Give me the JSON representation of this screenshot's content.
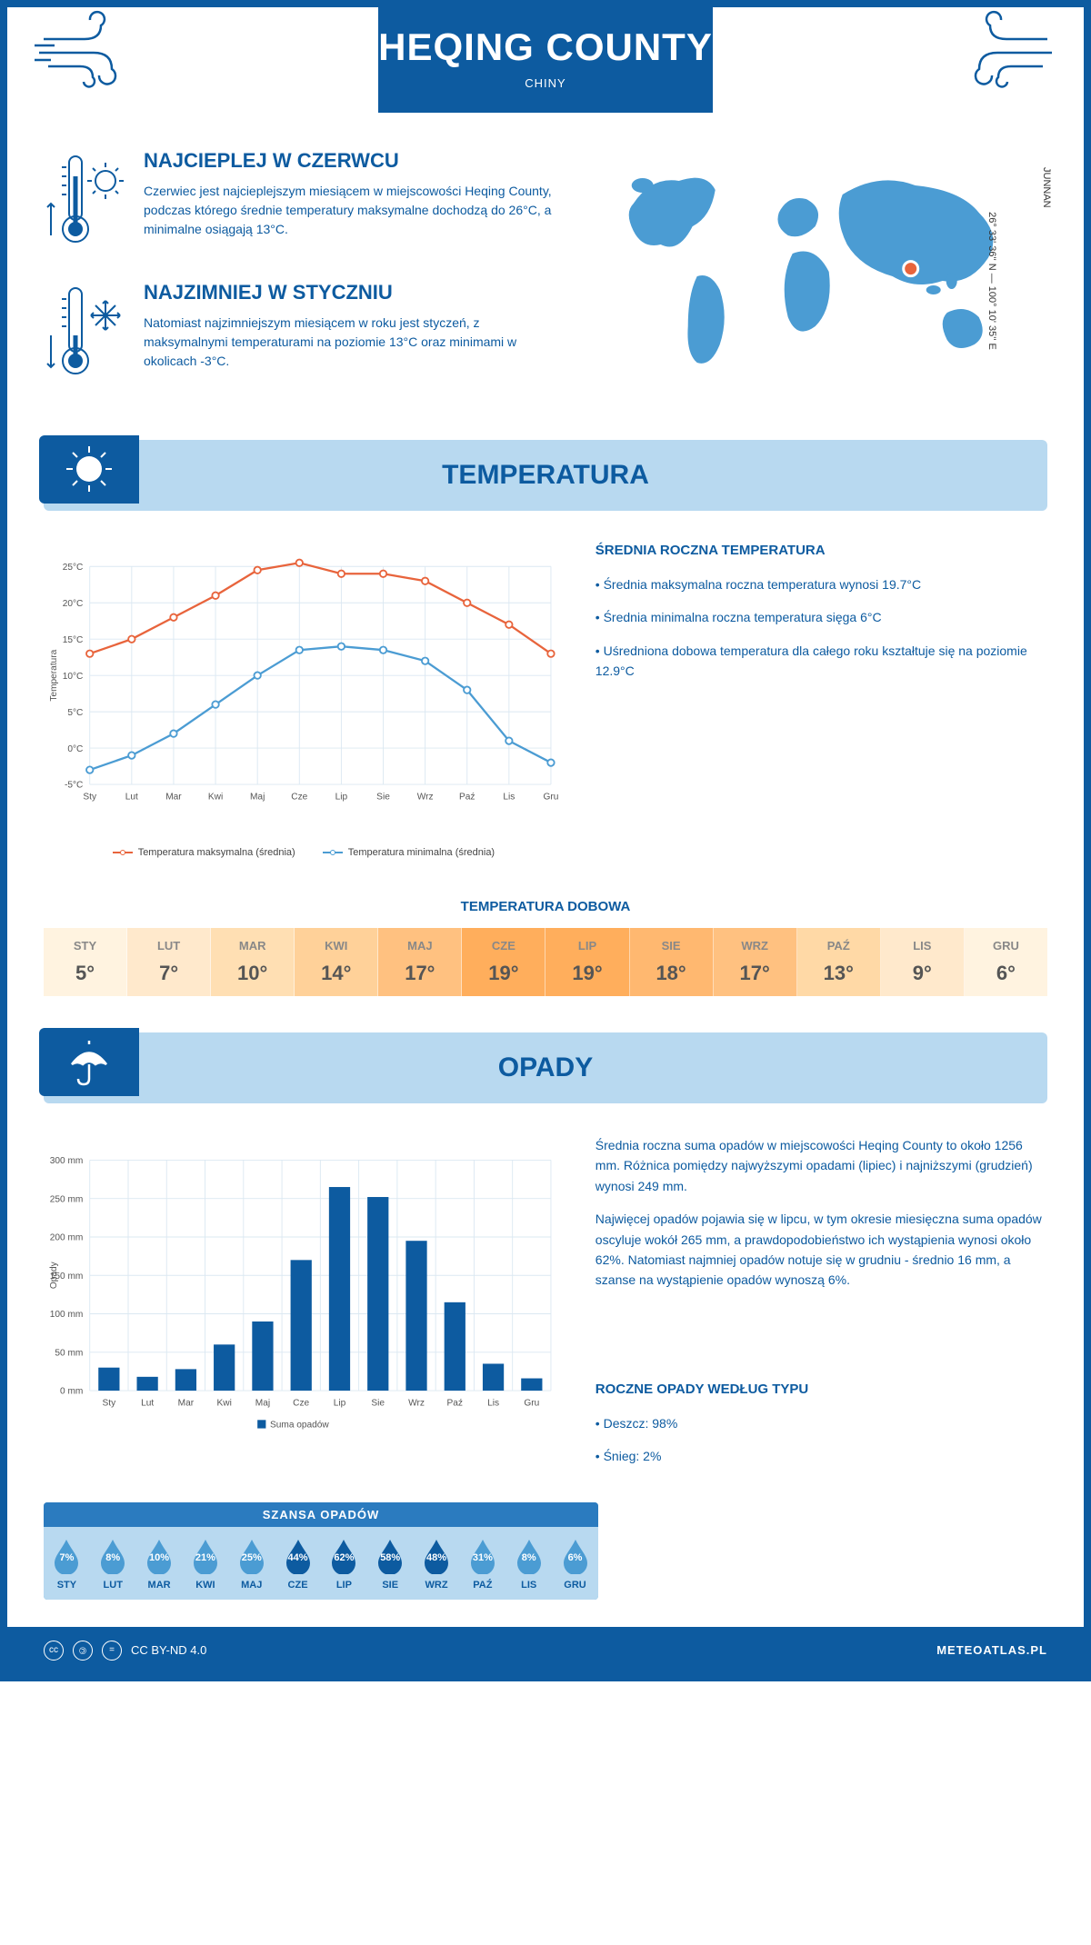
{
  "header": {
    "title": "HEQING COUNTY",
    "subtitle": "CHINY"
  },
  "coords": "26° 33' 36'' N — 100° 10' 35'' E",
  "region": "JUNNAN",
  "location_marker": {
    "cx_pct": 71,
    "cy_pct": 47
  },
  "warmest": {
    "title": "NAJCIEPLEJ W CZERWCU",
    "text": "Czerwiec jest najcieplejszym miesiącem w miejscowości Heqing County, podczas którego średnie temperatury maksymalne dochodzą do 26°C, a minimalne osiągają 13°C."
  },
  "coldest": {
    "title": "NAJZIMNIEJ W STYCZNIU",
    "text": "Natomiast najzimniejszym miesiącem w roku jest styczeń, z maksymalnymi temperaturami na poziomie 13°C oraz minimami w okolicach -3°C."
  },
  "temp_section": {
    "header": "TEMPERATURA",
    "side_title": "ŚREDNIA ROCZNA TEMPERATURA",
    "bullets": [
      "• Średnia maksymalna roczna temperatura wynosi 19.7°C",
      "• Średnia minimalna roczna temperatura sięga 6°C",
      "• Uśredniona dobowa temperatura dla całego roku kształtuje się na poziomie 12.9°C"
    ],
    "chart": {
      "type": "line",
      "months": [
        "Sty",
        "Lut",
        "Mar",
        "Kwi",
        "Maj",
        "Cze",
        "Lip",
        "Sie",
        "Wrz",
        "Paź",
        "Lis",
        "Gru"
      ],
      "ylim": [
        -5,
        25
      ],
      "ytick_step": 5,
      "ylabel": "Temperatura",
      "series": [
        {
          "name": "Temperatura maksymalna (średnia)",
          "color": "#e8643c",
          "values": [
            13,
            15,
            18,
            21,
            24.5,
            25.5,
            24,
            24,
            23,
            20,
            17,
            13
          ]
        },
        {
          "name": "Temperatura minimalna (średnia)",
          "color": "#4b9cd3",
          "values": [
            -3,
            -1,
            2,
            6,
            10,
            13.5,
            14,
            13.5,
            12,
            8,
            1,
            -2
          ]
        }
      ],
      "background_color": "#ffffff",
      "grid_color": "#dbe8f2"
    },
    "dobowa_title": "TEMPERATURA DOBOWA",
    "dobowa": {
      "months": [
        "STY",
        "LUT",
        "MAR",
        "KWI",
        "MAJ",
        "CZE",
        "LIP",
        "SIE",
        "WRZ",
        "PAŹ",
        "LIS",
        "GRU"
      ],
      "values": [
        "5°",
        "7°",
        "10°",
        "14°",
        "17°",
        "19°",
        "19°",
        "18°",
        "17°",
        "13°",
        "9°",
        "6°"
      ],
      "colors": [
        "#fff3e0",
        "#ffe9cc",
        "#ffdfb3",
        "#ffd199",
        "#ffc180",
        "#ffae5c",
        "#ffae5c",
        "#ffb870",
        "#ffc180",
        "#ffd9a6",
        "#ffe9cc",
        "#fff3e0"
      ]
    }
  },
  "precip_section": {
    "header": "OPADY",
    "side_para1": "Średnia roczna suma opadów w miejscowości Heqing County to około 1256 mm. Różnica pomiędzy najwyższymi opadami (lipiec) i najniższymi (grudzień) wynosi 249 mm.",
    "side_para2": "Najwięcej opadów pojawia się w lipcu, w tym okresie miesięczna suma opadów oscyluje wokół 265 mm, a prawdopodobieństwo ich wystąpienia wynosi około 62%. Natomiast najmniej opadów notuje się w grudniu - średnio 16 mm, a szanse na wystąpienie opadów wynoszą 6%.",
    "chart": {
      "type": "bar",
      "months": [
        "Sty",
        "Lut",
        "Mar",
        "Kwi",
        "Maj",
        "Cze",
        "Lip",
        "Sie",
        "Wrz",
        "Paź",
        "Lis",
        "Gru"
      ],
      "values": [
        30,
        18,
        28,
        60,
        90,
        170,
        265,
        252,
        195,
        115,
        35,
        16
      ],
      "ylabel": "Opady",
      "ylim": [
        0,
        300
      ],
      "ytick_step": 50,
      "bar_color": "#0d5ba0",
      "legend": "Suma opadów",
      "grid_color": "#dbe8f2"
    },
    "chance": {
      "title": "SZANSA OPADÓW",
      "months": [
        "STY",
        "LUT",
        "MAR",
        "KWI",
        "MAJ",
        "CZE",
        "LIP",
        "SIE",
        "WRZ",
        "PAŹ",
        "LIS",
        "GRU"
      ],
      "values": [
        "7%",
        "8%",
        "10%",
        "21%",
        "25%",
        "44%",
        "62%",
        "58%",
        "48%",
        "31%",
        "8%",
        "6%"
      ],
      "light_color": "#4b9cd3",
      "dark_color": "#0d5ba0",
      "dark_threshold": 40
    },
    "by_type_title": "ROCZNE OPADY WEDŁUG TYPU",
    "by_type": [
      "• Deszcz: 98%",
      "• Śnieg: 2%"
    ]
  },
  "footer": {
    "license": "CC BY-ND 4.0",
    "site": "METEOATLAS.PL"
  }
}
